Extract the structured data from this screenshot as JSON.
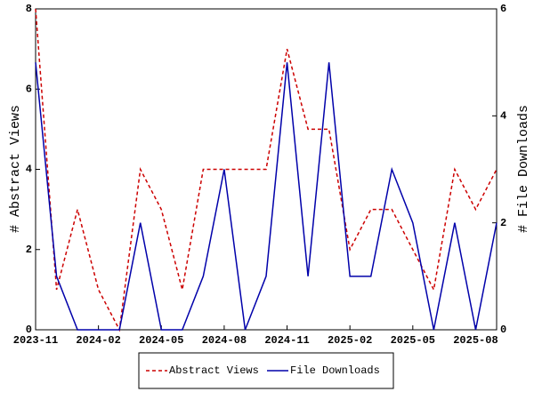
{
  "chart_data": {
    "type": "line",
    "ylabel": "# Abstract Views",
    "y2label": "# File Downloads",
    "categories": [
      "2023-11",
      null,
      null,
      "2024-02",
      null,
      null,
      "2024-05",
      null,
      null,
      "2024-08",
      null,
      null,
      "2024-11",
      null,
      null,
      "2025-02",
      null,
      null,
      "2025-05",
      null,
      null,
      "2025-08",
      null
    ],
    "series": [
      {
        "name": "Abstract Views",
        "color": "#cc0000",
        "dash": true,
        "values": [
          8,
          1,
          3,
          1,
          0,
          4,
          3,
          1,
          4,
          4,
          4,
          4,
          7,
          5,
          5,
          2,
          3,
          3,
          2,
          1,
          4,
          3,
          4
        ]
      },
      {
        "name": "File Downloads",
        "color": "#0000aa",
        "axis": "y2",
        "values": [
          5,
          1,
          0,
          0,
          0,
          2,
          0,
          0,
          1,
          3,
          0,
          1,
          5,
          1,
          5,
          1,
          1,
          3,
          2,
          0,
          2,
          0,
          2
        ]
      }
    ],
    "ylim": [
      0,
      8
    ],
    "yticks": [
      0,
      2,
      4,
      6,
      8
    ],
    "y2lim": [
      0,
      6
    ],
    "y2ticks": [
      0,
      2,
      4,
      6
    ],
    "legend": "bottom"
  }
}
